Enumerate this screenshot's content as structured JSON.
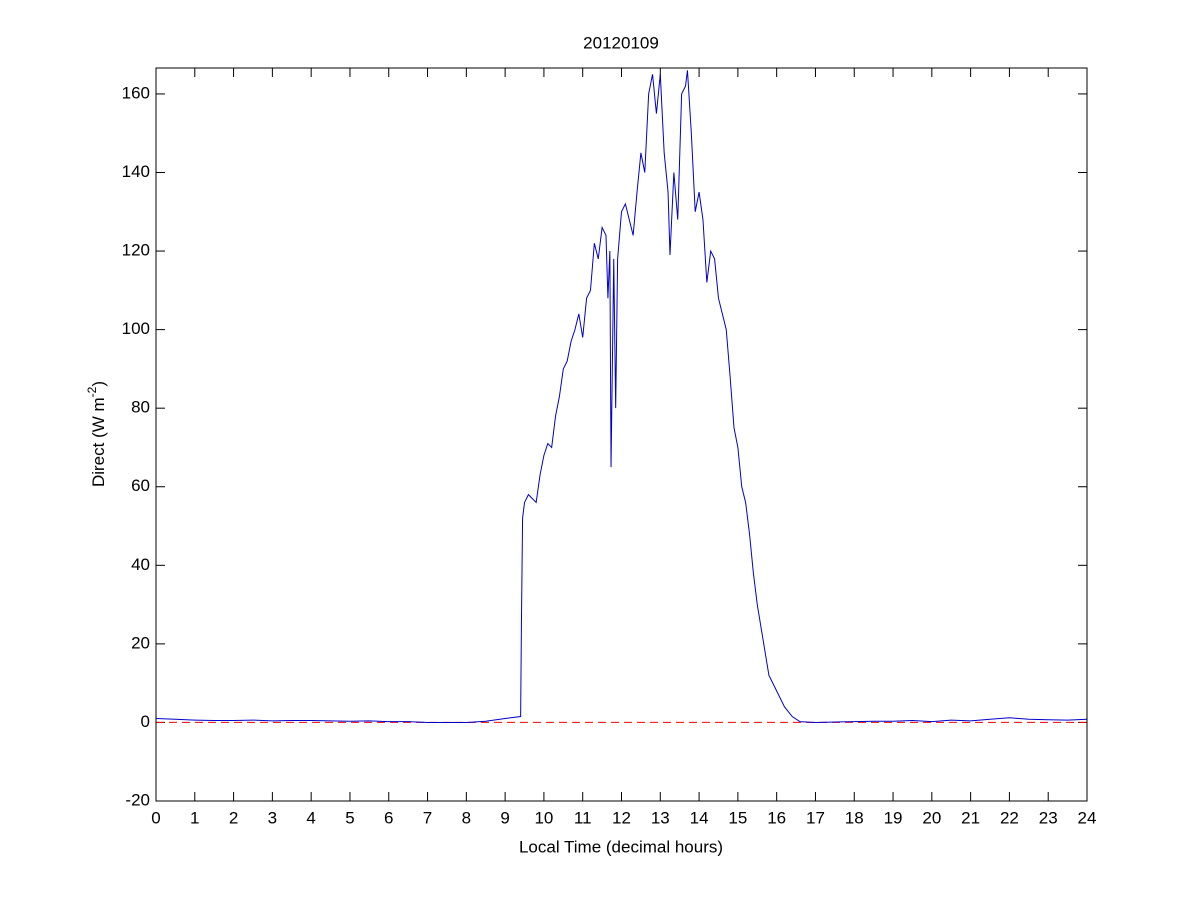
{
  "chart_data": {
    "type": "line",
    "title": "20120109",
    "xlabel": "Local Time (decimal hours)",
    "ylabel": {
      "text": "Direct (W m",
      "sup": "-2",
      "end": ")"
    },
    "xlim": [
      0,
      24
    ],
    "ylim": [
      -20,
      166.6
    ],
    "xticks": [
      0,
      1,
      2,
      3,
      4,
      5,
      6,
      7,
      8,
      9,
      10,
      11,
      12,
      13,
      14,
      15,
      16,
      17,
      18,
      19,
      20,
      21,
      22,
      23,
      24
    ],
    "yticks": [
      -20,
      0,
      20,
      40,
      60,
      80,
      100,
      120,
      140,
      160
    ],
    "reference_line": {
      "value": 0,
      "color": "#ff0000"
    },
    "series": [
      {
        "color": "#0000cc",
        "x": [
          0,
          0.5,
          1,
          1.5,
          2,
          2.5,
          3,
          3.5,
          4,
          4.5,
          5,
          5.5,
          6,
          6.5,
          7,
          7.5,
          8,
          8.5,
          9,
          9.4,
          9.42,
          9.45,
          9.5,
          9.6,
          9.7,
          9.8,
          9.9,
          10,
          10.1,
          10.2,
          10.3,
          10.4,
          10.5,
          10.6,
          10.7,
          10.8,
          10.9,
          11,
          11.1,
          11.2,
          11.3,
          11.4,
          11.5,
          11.6,
          11.65,
          11.7,
          11.73,
          11.8,
          11.85,
          11.9,
          12,
          12.1,
          12.2,
          12.3,
          12.4,
          12.5,
          12.6,
          12.7,
          12.8,
          12.9,
          13,
          13.1,
          13.2,
          13.25,
          13.35,
          13.45,
          13.55,
          13.65,
          13.7,
          13.8,
          13.9,
          14,
          14.1,
          14.2,
          14.3,
          14.4,
          14.5,
          14.6,
          14.7,
          14.8,
          14.9,
          15,
          15.1,
          15.2,
          15.3,
          15.4,
          15.5,
          15.6,
          15.7,
          15.8,
          15.9,
          16,
          16.2,
          16.4,
          16.6,
          17,
          17.5,
          18,
          18.5,
          19,
          19.5,
          20,
          20.5,
          21,
          21.5,
          22,
          22.5,
          23,
          23.5,
          24
        ],
        "values": [
          1,
          0.8,
          0.6,
          0.5,
          0.5,
          0.6,
          0.4,
          0.5,
          0.5,
          0.4,
          0.3,
          0.4,
          0.2,
          0.2,
          0,
          0,
          0,
          0.3,
          1,
          1.5,
          25,
          52,
          56,
          58,
          57,
          56,
          63,
          68,
          71,
          70,
          78,
          83,
          90,
          92,
          97,
          100,
          104,
          98,
          108,
          110,
          122,
          118,
          126,
          124,
          108,
          120,
          65,
          118,
          80,
          118,
          130,
          132,
          128,
          124,
          135,
          145,
          140,
          160,
          165,
          155,
          165,
          145,
          135,
          119,
          140,
          128,
          160,
          162,
          166,
          150,
          130,
          135,
          128,
          112,
          120,
          118,
          108,
          104,
          100,
          88,
          75,
          70,
          60,
          56,
          48,
          38,
          30,
          24,
          18,
          12,
          10,
          8,
          4,
          1.5,
          0.2,
          0,
          0.1,
          0.2,
          0.3,
          0.3,
          0.5,
          0.2,
          0.6,
          0.4,
          0.8,
          1.2,
          0.8,
          0.7,
          0.6,
          0.8
        ]
      }
    ]
  }
}
